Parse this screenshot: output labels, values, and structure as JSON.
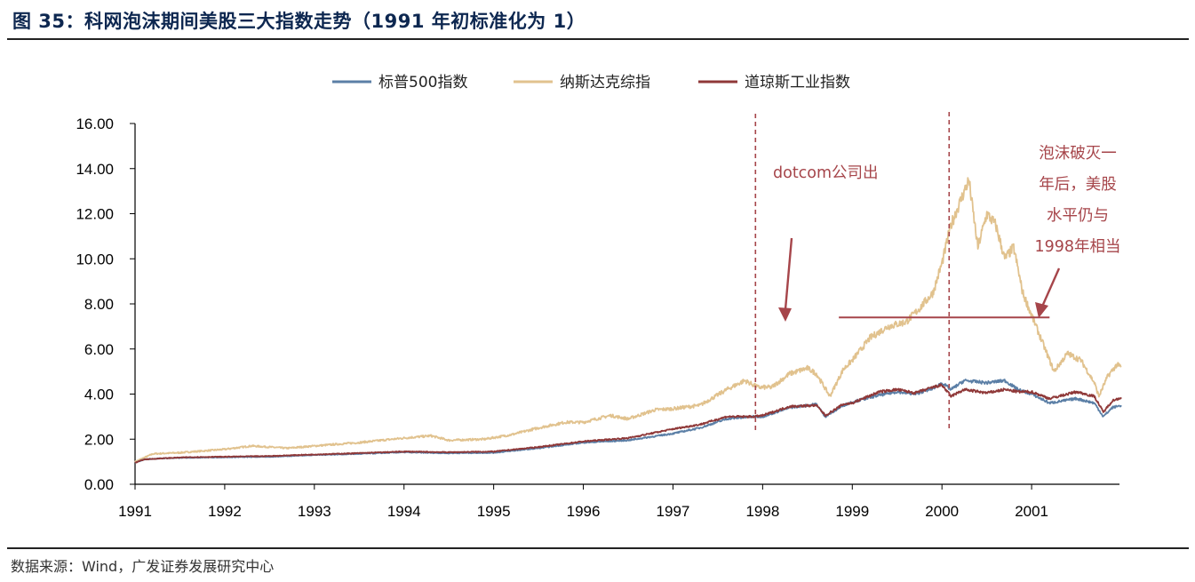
{
  "figure": {
    "title": "图 35：科网泡沫期间美股三大指数走势（1991 年初标准化为 1）",
    "source": "数据来源：Wind，广发证券发展研究中心"
  },
  "colors": {
    "sp500": "#5b7fa6",
    "nasdaq": "#e1c28e",
    "dow": "#8f3838",
    "annotation": "#a6454a",
    "title": "#0d2750"
  },
  "chart_data": {
    "type": "line",
    "title": "",
    "xlabel": "",
    "ylabel": "",
    "xlim": [
      1991.0,
      2002.0
    ],
    "ylim": [
      0,
      16
    ],
    "yticks": [
      0,
      2,
      4,
      6,
      8,
      10,
      12,
      14,
      16
    ],
    "ytick_labels": [
      "0.00",
      "2.00",
      "4.00",
      "6.00",
      "8.00",
      "10.00",
      "12.00",
      "14.00",
      "16.00"
    ],
    "xticks": [
      1991,
      1992,
      1993,
      1994,
      1995,
      1996,
      1997,
      1998,
      1999,
      2000,
      2001
    ],
    "xtick_labels": [
      "1991",
      "1992",
      "1993",
      "1994",
      "1995",
      "1996",
      "1997",
      "1998",
      "1999",
      "2000",
      "2001"
    ],
    "legend_position": "top-center",
    "grid": false,
    "series": [
      {
        "name": "标普500指数",
        "color": "#5b7fa6",
        "x": [
          1991.0,
          1991.1,
          1991.3,
          1991.6,
          1992.0,
          1992.5,
          1993.0,
          1993.5,
          1994.0,
          1994.5,
          1995.0,
          1995.5,
          1996.0,
          1996.5,
          1997.0,
          1997.3,
          1997.6,
          1997.9,
          1998.0,
          1998.3,
          1998.6,
          1998.7,
          1998.9,
          1999.0,
          1999.3,
          1999.5,
          1999.7,
          1999.9,
          2000.0,
          2000.1,
          2000.25,
          2000.5,
          2000.7,
          2000.85,
          2001.0,
          2001.2,
          2001.5,
          2001.7,
          2001.8,
          2001.9,
          2002.0
        ],
        "values": [
          0.95,
          1.1,
          1.15,
          1.18,
          1.2,
          1.22,
          1.3,
          1.35,
          1.42,
          1.38,
          1.4,
          1.6,
          1.85,
          1.95,
          2.25,
          2.5,
          2.9,
          3.0,
          3.0,
          3.4,
          3.55,
          3.0,
          3.5,
          3.65,
          3.95,
          4.1,
          4.0,
          4.25,
          4.5,
          4.2,
          4.6,
          4.5,
          4.6,
          4.2,
          4.0,
          3.6,
          3.8,
          3.6,
          3.0,
          3.4,
          3.5
        ]
      },
      {
        "name": "纳斯达克综指",
        "color": "#e1c28e",
        "x": [
          1991.0,
          1991.2,
          1991.5,
          1992.0,
          1992.3,
          1992.7,
          1993.0,
          1993.5,
          1994.0,
          1994.3,
          1994.5,
          1994.9,
          1995.2,
          1995.5,
          1995.8,
          1996.0,
          1996.3,
          1996.5,
          1996.8,
          1997.0,
          1997.3,
          1997.6,
          1997.8,
          1997.95,
          1998.1,
          1998.3,
          1998.5,
          1998.6,
          1998.75,
          1998.9,
          1999.0,
          1999.2,
          1999.4,
          1999.6,
          1999.75,
          1999.9,
          2000.0,
          2000.1,
          2000.2,
          2000.3,
          2000.4,
          2000.5,
          2000.6,
          2000.7,
          2000.8,
          2000.9,
          2001.0,
          2001.1,
          2001.25,
          2001.4,
          2001.55,
          2001.7,
          2001.75,
          2001.85,
          2001.95,
          2002.0
        ],
        "values": [
          1.0,
          1.35,
          1.4,
          1.55,
          1.7,
          1.6,
          1.7,
          1.85,
          2.05,
          2.15,
          1.95,
          2.0,
          2.2,
          2.5,
          2.75,
          2.75,
          3.05,
          2.9,
          3.3,
          3.35,
          3.5,
          4.2,
          4.6,
          4.3,
          4.3,
          4.9,
          5.15,
          4.9,
          3.9,
          5.1,
          5.5,
          6.5,
          7.0,
          7.2,
          7.8,
          8.5,
          9.8,
          11.5,
          12.5,
          13.5,
          10.5,
          12.0,
          11.5,
          10.0,
          10.5,
          8.5,
          7.5,
          6.5,
          5.0,
          5.8,
          5.5,
          4.5,
          3.9,
          4.8,
          5.3,
          5.2
        ]
      },
      {
        "name": "道琼斯工业指数",
        "color": "#8f3838",
        "x": [
          1991.0,
          1991.1,
          1991.3,
          1991.6,
          1992.0,
          1992.5,
          1993.0,
          1993.5,
          1994.0,
          1994.5,
          1995.0,
          1995.5,
          1996.0,
          1996.5,
          1997.0,
          1997.3,
          1997.6,
          1997.9,
          1998.0,
          1998.3,
          1998.6,
          1998.7,
          1998.9,
          1999.0,
          1999.3,
          1999.5,
          1999.7,
          1999.9,
          2000.0,
          2000.1,
          2000.25,
          2000.5,
          2000.7,
          2000.85,
          2001.0,
          2001.2,
          2001.5,
          2001.7,
          2001.8,
          2001.9,
          2002.0
        ],
        "values": [
          0.95,
          1.1,
          1.15,
          1.2,
          1.22,
          1.25,
          1.32,
          1.38,
          1.45,
          1.42,
          1.45,
          1.65,
          1.9,
          2.05,
          2.45,
          2.65,
          3.0,
          3.0,
          3.05,
          3.45,
          3.5,
          3.05,
          3.55,
          3.6,
          4.1,
          4.2,
          4.05,
          4.3,
          4.4,
          3.9,
          4.2,
          4.05,
          4.2,
          4.1,
          4.1,
          3.8,
          4.1,
          3.9,
          3.2,
          3.7,
          3.85
        ]
      }
    ],
    "annotations": [
      {
        "text": "dotcom公司出",
        "type": "vline",
        "x": 1997.92
      },
      {
        "text": "泡沫破灭一年后，美股水平仍与1998年相当",
        "lines": [
          "泡沫破灭一",
          "年后，美股",
          "水平仍与",
          "1998年相当"
        ],
        "type": "vline",
        "x": 2000.08,
        "hline_y": 7.4,
        "hline_x": [
          1998.85,
          2001.2
        ]
      }
    ]
  }
}
